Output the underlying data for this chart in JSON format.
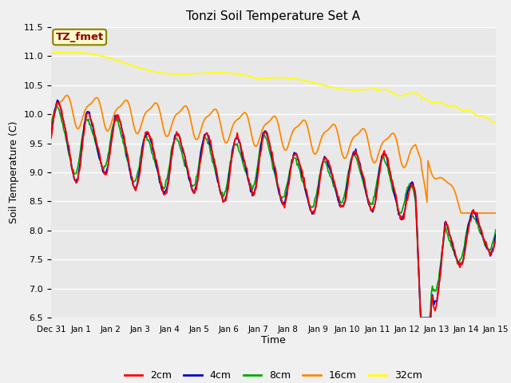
{
  "title": "Tonzi Soil Temperature Set A",
  "xlabel": "Time",
  "ylabel": "Soil Temperature (C)",
  "ylim": [
    6.5,
    11.5
  ],
  "xlim": [
    0,
    15
  ],
  "annotation_text": "TZ_fmet",
  "annotation_color": "#8B0000",
  "annotation_bg": "#FFFACD",
  "annotation_edge": "#8B8000",
  "series_colors": {
    "2cm": "#FF0000",
    "4cm": "#0000CC",
    "8cm": "#00AA00",
    "16cm": "#FF8800",
    "32cm": "#FFFF00"
  },
  "legend_labels": [
    "2cm",
    "4cm",
    "8cm",
    "16cm",
    "32cm"
  ],
  "x_tick_labels": [
    "Dec 31",
    "Jan 1",
    "Jan 2",
    "Jan 3",
    "Jan 4",
    "Jan 5",
    "Jan 6",
    "Jan 7",
    "Jan 8",
    "Jan 9",
    "Jan 10",
    "Jan 11",
    "Jan 12",
    "Jan 13",
    "Jan 14",
    "Jan 15"
  ],
  "grid_color": "#ffffff",
  "plot_bg_color": "#e8e8e8",
  "fig_bg_color": "#f0f0f0",
  "title_fontsize": 11,
  "label_fontsize": 9,
  "tick_fontsize": 8,
  "xtick_fontsize": 7.5,
  "linewidth": 1.3,
  "yticks": [
    6.5,
    7.0,
    7.5,
    8.0,
    8.5,
    9.0,
    9.5,
    10.0,
    10.5,
    11.0,
    11.5
  ]
}
